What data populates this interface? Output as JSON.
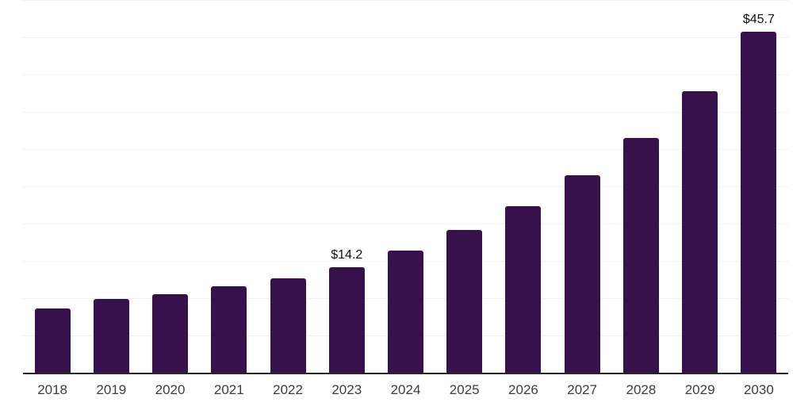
{
  "chart_data": {
    "type": "bar",
    "title": "",
    "xlabel": "",
    "ylabel": "",
    "categories": [
      "2018",
      "2019",
      "2020",
      "2021",
      "2022",
      "2023",
      "2024",
      "2025",
      "2026",
      "2027",
      "2028",
      "2029",
      "2030"
    ],
    "values": [
      8.6,
      9.9,
      10.5,
      11.6,
      12.7,
      14.2,
      16.4,
      19.1,
      22.3,
      26.5,
      31.5,
      37.8,
      45.7
    ],
    "data_labels": {
      "2023": "$14.2",
      "2030": "$45.7"
    },
    "ylim": [
      0,
      50
    ],
    "gridline_step": 5,
    "grid": "horizontal",
    "legend": "none",
    "y_axis_tick_labels_visible": false,
    "colors": {
      "bar": "#36114C",
      "axis_line": "#262626",
      "gridline": "#F2F2F2",
      "value_label": "#111111",
      "tick_label": "#3D3D3D",
      "background": "#FFFFFF"
    }
  }
}
